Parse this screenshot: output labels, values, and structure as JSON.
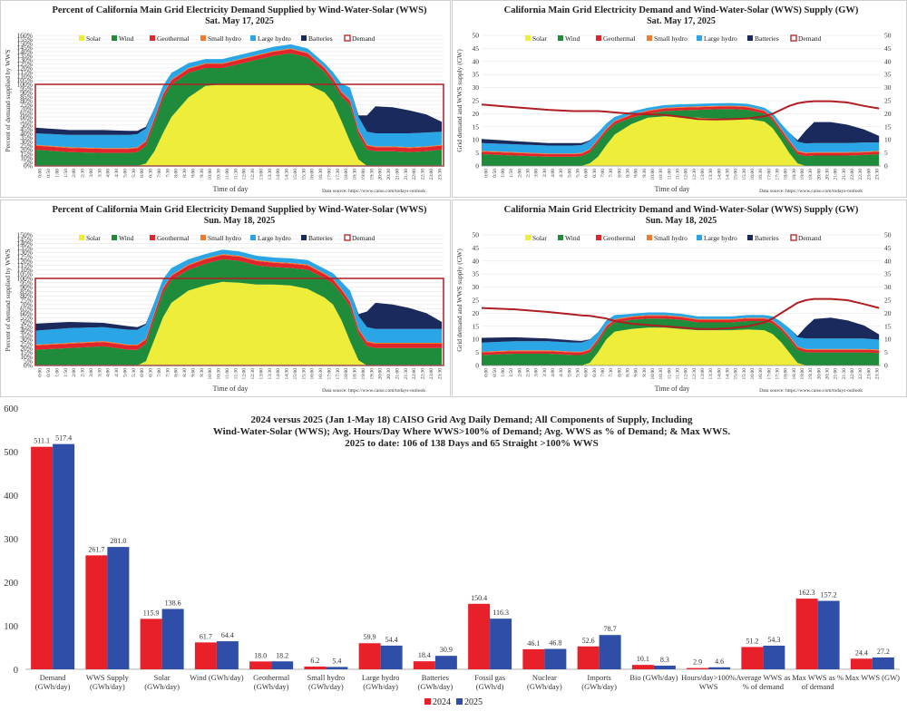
{
  "colors": {
    "solar": "#eded3a",
    "wind": "#1e8c3a",
    "geothermal": "#e0252b",
    "small_hydro": "#f07b2a",
    "large_hydro": "#2aa6e6",
    "batteries": "#1b2a5c",
    "demand": "#b01e24",
    "bar2024": "#e8202a",
    "bar2025": "#2e4ea8"
  },
  "legend_labels": [
    "Solar",
    "Wind",
    "Geothermal",
    "Small hydro",
    "Large hydro",
    "Batteries",
    "Demand"
  ],
  "source_note": "Data source: https://www.caiso.com/todays-outlook",
  "time_labels": [
    "0:00",
    "0:50",
    "1:00",
    "1:50",
    "2:00",
    "2:30",
    "3:00",
    "3:30",
    "4:00",
    "4:30",
    "5:00",
    "5:30",
    "6:00",
    "6:30",
    "7:00",
    "7:30",
    "8:00",
    "8:30",
    "9:00",
    "9:30",
    "10:00",
    "10:30",
    "11:00",
    "11:30",
    "12:00",
    "12:30",
    "13:00",
    "13:30",
    "14:00",
    "14:30",
    "15:00",
    "15:30",
    "16:00",
    "16:30",
    "17:00",
    "17:30",
    "18:00",
    "18:30",
    "19:00",
    "19:30",
    "20:00",
    "20:30",
    "21:00",
    "21:30",
    "22:00",
    "22:30",
    "23:00",
    "23:30"
  ],
  "chart_data": [
    {
      "type": "area",
      "title": "Percent of California Main Grid Electricity Demand Supplied by Wind-Water-Solar (WWS)",
      "subtitle": "Sat. May 17, 2025",
      "xlabel": "Time of day",
      "ylabel": "Percent of demand supplied by WWS",
      "yticks": [
        "0%",
        "5%",
        "10%",
        "15%",
        "20%",
        "25%",
        "30%",
        "35%",
        "40%",
        "45%",
        "50%",
        "55%",
        "60%",
        "65%",
        "70%",
        "75%",
        "80%",
        "85%",
        "90%",
        "95%",
        "100%",
        "105%",
        "110%",
        "115%",
        "120%",
        "125%",
        "130%",
        "135%",
        "140%",
        "145%",
        "150%",
        "155%",
        "160%"
      ],
      "ylim": [
        0,
        160
      ],
      "demand_line": 100,
      "series": {
        "x": [
          0,
          2,
          4,
          5.5,
          6,
          6.5,
          7,
          7.5,
          8,
          9,
          10,
          11,
          12,
          13,
          14,
          15,
          16,
          17,
          17.5,
          18,
          18.5,
          19,
          19.5,
          20,
          21,
          22,
          23,
          23.9
        ],
        "solar": [
          0,
          0,
          0,
          0,
          0,
          3,
          18,
          40,
          60,
          84,
          98,
          100,
          100,
          100,
          100,
          100,
          100,
          90,
          78,
          55,
          30,
          8,
          0,
          0,
          0,
          0,
          0,
          0
        ],
        "wind": [
          20,
          17,
          16,
          16,
          17,
          22,
          35,
          42,
          40,
          30,
          22,
          20,
          25,
          30,
          35,
          38,
          33,
          25,
          24,
          30,
          45,
          30,
          20,
          18,
          18,
          17,
          18,
          20
        ],
        "geothermal": [
          5,
          5,
          5,
          5,
          5,
          5,
          5,
          5,
          5,
          5,
          5,
          5,
          5,
          5,
          5,
          5,
          5,
          5,
          5,
          5,
          5,
          5,
          5,
          5,
          5,
          5,
          5,
          5
        ],
        "small_hydro": [
          1,
          1,
          1,
          1,
          1,
          1,
          1,
          1,
          1,
          1,
          1,
          1,
          1,
          1,
          1,
          1,
          1,
          1,
          1,
          1,
          1,
          1,
          1,
          1,
          1,
          1,
          1,
          1
        ],
        "large_hydro": [
          14,
          15,
          16,
          16,
          16,
          15,
          12,
          10,
          8,
          6,
          5,
          5,
          5,
          5,
          5,
          5,
          5,
          5,
          7,
          10,
          15,
          16,
          16,
          16,
          16,
          17,
          17,
          16
        ],
        "batteries": [
          7,
          6,
          6,
          5,
          4,
          2,
          0,
          0,
          0,
          0,
          0,
          0,
          0,
          0,
          0,
          0,
          0,
          0,
          0,
          0,
          0,
          2,
          20,
          33,
          32,
          28,
          22,
          12
        ]
      }
    },
    {
      "type": "area",
      "title": "California Main Grid Electricity Demand and Wind-Water-Solar (WWS) Supply (GW)",
      "subtitle": "Sat. May 17, 2025",
      "xlabel": "Time of day",
      "ylabel": "Grid demand and WWS supply (GW)",
      "yticks": [
        "0",
        "5",
        "10",
        "15",
        "20",
        "25",
        "30",
        "35",
        "40",
        "45",
        "50"
      ],
      "ylim": [
        0,
        50
      ],
      "series": {
        "x": [
          0,
          2,
          4,
          5.5,
          6,
          6.5,
          7,
          7.5,
          8,
          9,
          10,
          11,
          12,
          13,
          14,
          15,
          16,
          17,
          17.5,
          18,
          18.5,
          19,
          19.5,
          20,
          21,
          22,
          23,
          23.9
        ],
        "solar": [
          0,
          0,
          0,
          0,
          0,
          1,
          3.5,
          8,
          12,
          16,
          18.5,
          19,
          18.8,
          18.5,
          18.2,
          18,
          18,
          17,
          14.5,
          10,
          5,
          1,
          0,
          0,
          0,
          0,
          0,
          0
        ],
        "wind": [
          4.5,
          4,
          3.5,
          3.5,
          3.7,
          4.2,
          5.5,
          5,
          4,
          2.5,
          1.5,
          2,
          2.5,
          3,
          3.5,
          3.8,
          3.5,
          3,
          3,
          3,
          3.5,
          3.5,
          3.8,
          4,
          4,
          4,
          4.2,
          4.5
        ],
        "geothermal": [
          1,
          1,
          1,
          1,
          1,
          1,
          1,
          1,
          1,
          1,
          1,
          1,
          1,
          1,
          1,
          1,
          1,
          1,
          1,
          1,
          1,
          1,
          1,
          1,
          1,
          1,
          1,
          1
        ],
        "small_hydro": [
          0.3,
          0.3,
          0.3,
          0.3,
          0.3,
          0.3,
          0.3,
          0.3,
          0.3,
          0.3,
          0.3,
          0.3,
          0.3,
          0.3,
          0.3,
          0.3,
          0.3,
          0.3,
          0.3,
          0.3,
          0.3,
          0.3,
          0.3,
          0.3,
          0.3,
          0.3,
          0.3,
          0.3
        ],
        "large_hydro": [
          3,
          3,
          3,
          3,
          3,
          3,
          2.5,
          2,
          1.5,
          1,
          1,
          1,
          1,
          1,
          1,
          1,
          1,
          1,
          1.5,
          2,
          3,
          3.5,
          3.5,
          3.5,
          3.5,
          3.5,
          3.5,
          3.2
        ],
        "batteries": [
          1.5,
          1.2,
          1,
          1,
          0.8,
          0.3,
          0,
          0,
          0,
          0,
          0,
          0,
          0,
          0,
          0,
          0,
          0,
          0,
          0,
          0,
          0,
          0.5,
          5,
          8,
          8,
          7,
          5,
          2.5
        ],
        "demand": [
          23.5,
          22.5,
          21.5,
          21,
          21,
          21,
          21,
          20.8,
          20.5,
          20,
          19.8,
          19.5,
          18.8,
          18,
          17.8,
          17.9,
          18.2,
          19,
          20,
          21.5,
          23,
          24,
          24.5,
          24.8,
          24.8,
          24.3,
          23,
          22
        ]
      }
    },
    {
      "type": "area",
      "title": "Percent of California Main Grid Electricity Demand Supplied by Wind-Water-Solar (WWS)",
      "subtitle": "Sun. May 18, 2025",
      "xlabel": "Time of day",
      "ylabel": "Percent of demand supplied by WWS",
      "yticks": [
        "0%",
        "5%",
        "10%",
        "15%",
        "20%",
        "25%",
        "30%",
        "35%",
        "40%",
        "45%",
        "50%",
        "55%",
        "60%",
        "65%",
        "70%",
        "75%",
        "80%",
        "85%",
        "90%",
        "95%",
        "100%",
        "105%",
        "110%",
        "115%",
        "120%",
        "125%",
        "130%",
        "135%",
        "140%",
        "145%",
        "150%"
      ],
      "ylim": [
        0,
        150
      ],
      "demand_line": 100,
      "series": {
        "x": [
          0,
          2,
          4,
          5.5,
          6,
          6.5,
          7,
          7.5,
          8,
          9,
          10,
          11,
          12,
          13,
          14,
          15,
          16,
          17,
          17.5,
          18,
          18.5,
          19,
          19.5,
          20,
          21,
          22,
          23,
          23.9
        ],
        "solar": [
          0,
          0,
          0,
          0,
          0,
          5,
          30,
          55,
          72,
          86,
          92,
          96,
          95,
          93,
          93,
          92,
          88,
          78,
          70,
          52,
          28,
          6,
          0,
          0,
          0,
          0,
          0,
          0
        ],
        "wind": [
          18,
          20,
          22,
          18,
          18,
          20,
          25,
          28,
          26,
          24,
          25,
          26,
          25,
          22,
          20,
          20,
          22,
          22,
          24,
          30,
          40,
          30,
          22,
          20,
          20,
          20,
          20,
          20
        ],
        "geothermal": [
          5,
          5,
          5,
          5,
          5,
          5,
          5,
          5,
          5,
          5,
          5,
          5,
          5,
          5,
          5,
          5,
          5,
          5,
          5,
          5,
          5,
          5,
          5,
          5,
          5,
          5,
          5,
          5
        ],
        "small_hydro": [
          1,
          1,
          1,
          1,
          1,
          1,
          1,
          1,
          1,
          1,
          1,
          1,
          1,
          1,
          1,
          1,
          1,
          1,
          1,
          1,
          1,
          1,
          1,
          1,
          1,
          1,
          1,
          1
        ],
        "large_hydro": [
          16,
          17,
          16,
          17,
          17,
          16,
          12,
          10,
          8,
          6,
          5,
          5,
          5,
          5,
          5,
          5,
          5,
          5,
          6,
          8,
          12,
          15,
          16,
          16,
          16,
          16,
          16,
          16
        ],
        "batteries": [
          8,
          7,
          5,
          4,
          3,
          1,
          0,
          0,
          0,
          0,
          0,
          0,
          0,
          0,
          0,
          0,
          0,
          0,
          0,
          0,
          0,
          2,
          18,
          30,
          28,
          24,
          18,
          8
        ]
      }
    },
    {
      "type": "area",
      "title": "California Main Grid Electricity Demand and Wind-Water-Solar (WWS) Supply (GW)",
      "subtitle": "Sun. May 18, 2025",
      "xlabel": "Time of day",
      "ylabel": "Grid demand and WWS supply (GW)",
      "yticks": [
        "0",
        "5",
        "10",
        "15",
        "20",
        "25",
        "30",
        "35",
        "40",
        "45",
        "50"
      ],
      "ylim": [
        0,
        50
      ],
      "series": {
        "x": [
          0,
          2,
          4,
          5.5,
          6,
          6.5,
          7,
          7.5,
          8,
          9,
          10,
          11,
          12,
          13,
          14,
          15,
          16,
          17,
          17.5,
          18,
          18.5,
          19,
          19.5,
          20,
          21,
          22,
          23,
          23.9
        ],
        "solar": [
          0,
          0,
          0,
          0,
          0,
          1,
          5,
          10,
          13,
          14,
          14.5,
          14.5,
          14,
          13.5,
          13.5,
          13.5,
          13.8,
          13.5,
          12,
          9,
          5,
          1,
          0,
          0,
          0,
          0,
          0,
          0
        ],
        "wind": [
          4,
          4.5,
          4.5,
          4,
          4,
          4,
          4,
          4,
          3.5,
          3.5,
          3.5,
          3.5,
          3.5,
          3,
          3,
          3,
          3.2,
          3.5,
          4,
          4.5,
          5,
          5,
          5,
          5,
          5,
          5,
          5,
          4.8
        ],
        "geothermal": [
          1,
          1,
          1,
          1,
          1,
          1,
          1,
          1,
          1,
          1,
          1,
          1,
          1,
          1,
          1,
          1,
          1,
          1,
          1,
          1,
          1,
          1,
          1,
          1,
          1,
          1,
          1,
          1
        ],
        "small_hydro": [
          0.3,
          0.3,
          0.3,
          0.3,
          0.3,
          0.3,
          0.3,
          0.3,
          0.3,
          0.3,
          0.3,
          0.3,
          0.3,
          0.3,
          0.3,
          0.3,
          0.3,
          0.3,
          0.3,
          0.3,
          0.3,
          0.3,
          0.3,
          0.3,
          0.3,
          0.3,
          0.3,
          0.3
        ],
        "large_hydro": [
          3.5,
          3.5,
          3.5,
          3.5,
          3.5,
          3.5,
          2.5,
          2,
          1.5,
          1,
          1,
          1,
          1,
          1,
          1,
          1,
          1,
          1,
          1.5,
          2,
          3,
          3.5,
          4,
          4,
          4,
          4,
          4,
          3.8
        ],
        "batteries": [
          1.8,
          1.5,
          1,
          0.8,
          0.6,
          0.2,
          0,
          0,
          0,
          0,
          0,
          0,
          0,
          0,
          0,
          0,
          0,
          0,
          0,
          0,
          0,
          0.5,
          4.5,
          7.5,
          8,
          7,
          5,
          2
        ],
        "demand": [
          22,
          21.5,
          20.5,
          19.5,
          19.2,
          19,
          18.5,
          18,
          17,
          16,
          15.5,
          15,
          14.5,
          14,
          14,
          14.3,
          15,
          16.5,
          18,
          20,
          22,
          24,
          25,
          25.5,
          25.5,
          25,
          23.5,
          22
        ]
      }
    },
    {
      "type": "bar",
      "title": "2024 versus 2025 (Jan 1-May 18) CAISO Grid Avg Daily Demand; All Components of Supply, Including Wind-Water-Solar (WWS); Avg. Hours/Day Where WWS>100% of Demand; Avg. WWS as % of Demand; & Max WWS. 2025 to date: 106 of 138 Days and 65 Straight >100% WWS",
      "yticks": [
        "0",
        "100",
        "200",
        "300",
        "400",
        "500",
        "600"
      ],
      "ylim": [
        0,
        600
      ],
      "categories": [
        "Demand (GWh/day)",
        "WWS Supply (GWh/day)",
        "Solar (GWh/day)",
        "Wind (GWh/day)",
        "Geothermal (GWh/day)",
        "Small hydro (GWh/day)",
        "Large hydro (GWh/day)",
        "Batteries (GWh/day)",
        "Fossil gas (GWh/d)",
        "Nuclear (GWh/day)",
        "Imports (GWh/day)",
        "Bio (GWh/day)",
        "Hours/day>100% WWS",
        "Average WWS as % of demand",
        "Max WWS as % of demand",
        "Max WWS (GW)"
      ],
      "series": [
        {
          "name": "2024",
          "values": [
            511.1,
            261.7,
            115.9,
            61.7,
            18.0,
            6.2,
            59.9,
            18.4,
            150.4,
            46.1,
            52.6,
            10.1,
            2.9,
            51.2,
            162.3,
            24.4
          ]
        },
        {
          "name": "2025",
          "values": [
            517.4,
            281.0,
            138.6,
            64.4,
            18.2,
            5.4,
            54.4,
            30.9,
            116.3,
            46.8,
            78.7,
            8.3,
            4.6,
            54.3,
            157.2,
            27.2
          ]
        }
      ],
      "value_labels": [
        [
          "511.1",
          "261.7",
          "115.9",
          "61.7",
          "18.0",
          "6.2",
          "59.9",
          "18.4",
          "150.4",
          "46.1",
          "52.6",
          "10.1",
          "2.9",
          "51.2",
          "162.3",
          "24.4"
        ],
        [
          "517.4",
          "281.0",
          "138.6",
          "64.4",
          "18.2",
          "5.4",
          "54.4",
          "30.9",
          "116.3",
          "46.8",
          "78.7",
          "8.3",
          "4.6",
          "54.3",
          "157.2",
          "27.2"
        ]
      ],
      "legend": [
        "2024",
        "2025"
      ]
    }
  ]
}
